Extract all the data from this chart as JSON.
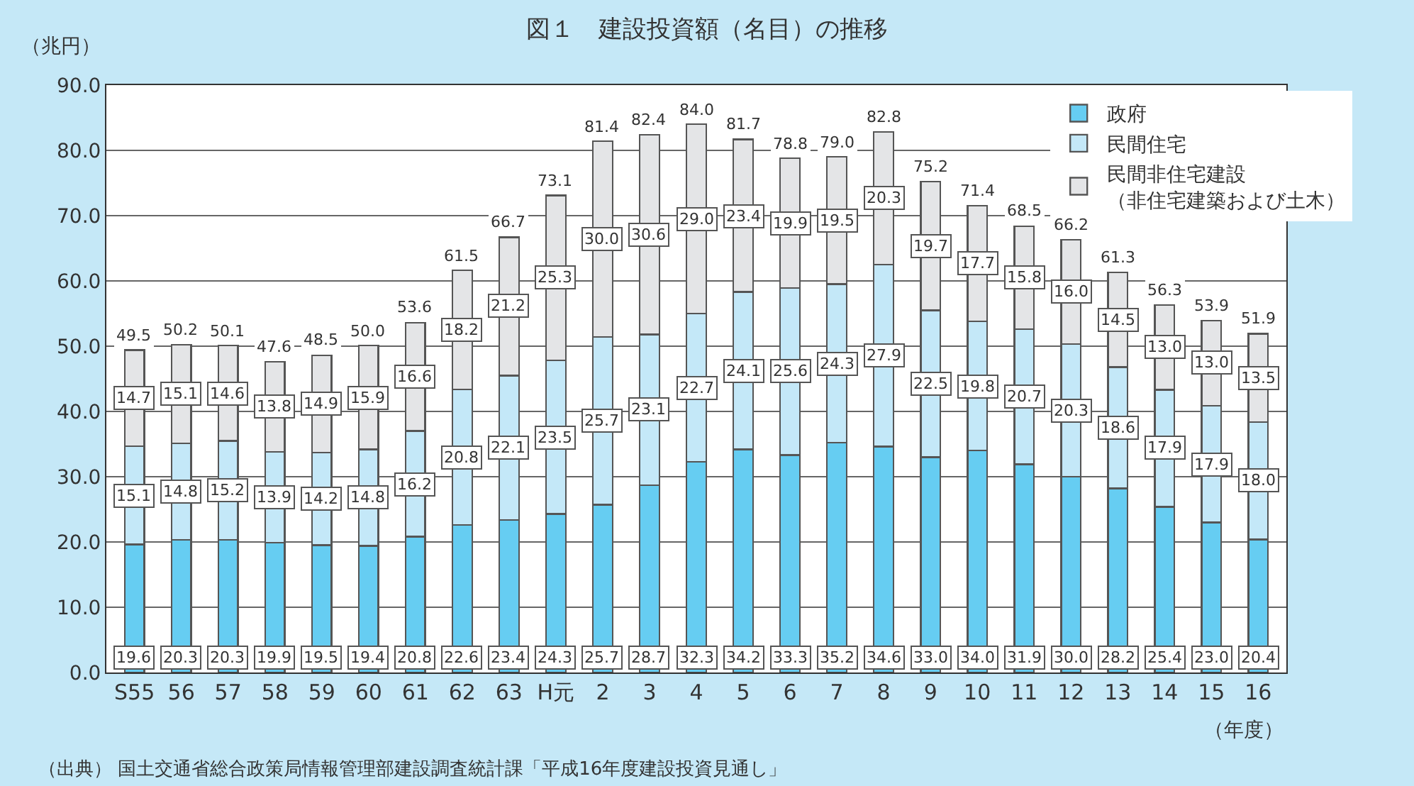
{
  "chart_data": {
    "type": "bar",
    "title": "図１　建設投資額（名目）の推移",
    "ylabel": "（兆円）",
    "xlabel": "（年度）",
    "categories": [
      "S55",
      "56",
      "57",
      "58",
      "59",
      "60",
      "61",
      "62",
      "63",
      "H元",
      "2",
      "3",
      "4",
      "5",
      "6",
      "7",
      "8",
      "9",
      "10",
      "11",
      "12",
      "13",
      "14",
      "15",
      "16"
    ],
    "stacked": true,
    "series": [
      {
        "name": "政府",
        "color": "#66cdf2",
        "values": [
          19.6,
          20.3,
          20.3,
          19.9,
          19.5,
          19.4,
          20.8,
          22.6,
          23.4,
          24.3,
          25.7,
          28.7,
          32.3,
          34.2,
          33.3,
          35.2,
          34.6,
          33.0,
          34.0,
          31.9,
          30.0,
          28.2,
          25.4,
          23.0,
          20.4
        ]
      },
      {
        "name": "民間住宅",
        "color": "#c4e8f8",
        "values": [
          15.1,
          14.8,
          15.2,
          13.9,
          14.2,
          14.8,
          16.2,
          20.8,
          22.1,
          23.5,
          25.7,
          23.1,
          22.7,
          24.1,
          25.6,
          24.3,
          27.9,
          22.5,
          19.8,
          20.7,
          20.3,
          18.6,
          17.9,
          17.9,
          18.0
        ]
      },
      {
        "name": "民間非住宅建設（非住宅建築および土木）",
        "color": "#e4e5e7",
        "values": [
          14.7,
          15.1,
          14.6,
          13.8,
          14.9,
          15.9,
          16.6,
          18.2,
          21.2,
          25.3,
          30.0,
          30.6,
          29.0,
          23.4,
          19.9,
          19.5,
          20.3,
          19.7,
          17.7,
          15.8,
          16.0,
          14.5,
          13.0,
          13.0,
          13.5
        ]
      }
    ],
    "totals": [
      "49.5",
      "50.2",
      "50.1",
      "47.6",
      "48.5",
      "50.0",
      "53.6",
      "61.5",
      "66.7",
      "73.1",
      "81.4",
      "82.4",
      "84.0",
      "81.7",
      "78.8",
      "79.0",
      "82.8",
      "75.2",
      "71.4",
      "68.5",
      "66.2",
      "61.3",
      "56.3",
      "53.9",
      "51.9"
    ],
    "value_labels": [
      [
        "19.6",
        "20.3",
        "20.3",
        "19.9",
        "19.5",
        "19.4",
        "20.8",
        "22.6",
        "23.4",
        "24.3",
        "25.7",
        "28.7",
        "32.3",
        "34.2",
        "33.3",
        "35.2",
        "34.6",
        "33.0",
        "34.0",
        "31.9",
        "30.0",
        "28.2",
        "25.4",
        "23.0",
        "20.4"
      ],
      [
        "15.1",
        "14.8",
        "15.2",
        "13.9",
        "14.2",
        "14.8",
        "16.2",
        "20.8",
        "22.1",
        "23.5",
        "25.7",
        "23.1",
        "22.7",
        "24.1",
        "25.6",
        "24.3",
        "27.9",
        "22.5",
        "19.8",
        "20.7",
        "20.3",
        "18.6",
        "17.9",
        "17.9",
        "18.0"
      ],
      [
        "14.7",
        "15.1",
        "14.6",
        "13.8",
        "14.9",
        "15.9",
        "16.6",
        "18.2",
        "21.2",
        "25.3",
        "30.0",
        "30.6",
        "29.0",
        "23.4",
        "19.9",
        "19.5",
        "20.3",
        "19.7",
        "17.7",
        "15.8",
        "16.0",
        "14.5",
        "13.0",
        "13.0",
        "13.5"
      ]
    ],
    "ylim": [
      0,
      90
    ],
    "yticks": [
      {
        "value": 0,
        "label": "0.0"
      },
      {
        "value": 10,
        "label": "10.0"
      },
      {
        "value": 20,
        "label": "20.0"
      },
      {
        "value": 30,
        "label": "30.0"
      },
      {
        "value": 40,
        "label": "40.0"
      },
      {
        "value": 50,
        "label": "50.0"
      },
      {
        "value": 60,
        "label": "60.0"
      },
      {
        "value": 70,
        "label": "70.0"
      },
      {
        "value": 80,
        "label": "80.0"
      },
      {
        "value": 90,
        "label": "90.0"
      }
    ],
    "grid": "y",
    "legend": "top right",
    "annotations": [
      "（出典） 国土交通省総合政策局情報管理部建設調査統計課「平成16年度建設投資見通し」"
    ]
  }
}
